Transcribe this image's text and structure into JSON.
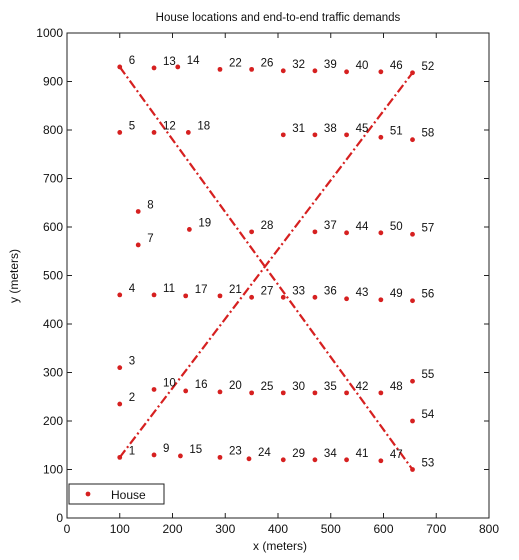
{
  "chart_data": {
    "type": "scatter",
    "title": "House locations and end-to-end traffic demands",
    "xlabel": "x (meters)",
    "ylabel": "y (meters)",
    "xlim": [
      0,
      800
    ],
    "ylim": [
      0,
      1000
    ],
    "xticks": [
      0,
      100,
      200,
      300,
      400,
      500,
      600,
      700,
      800
    ],
    "yticks": [
      0,
      100,
      200,
      300,
      400,
      500,
      600,
      700,
      800,
      900,
      1000
    ],
    "grid": false,
    "legend": {
      "position": "bottom-left",
      "entries": [
        {
          "label": "House",
          "marker": "dot",
          "color": "#d62020"
        }
      ]
    },
    "colors": {
      "house": "#d62020",
      "demand": "#d62020"
    },
    "points": [
      {
        "label": "1",
        "x": 100,
        "y": 125
      },
      {
        "label": "2",
        "x": 100,
        "y": 235
      },
      {
        "label": "3",
        "x": 100,
        "y": 310
      },
      {
        "label": "4",
        "x": 100,
        "y": 460
      },
      {
        "label": "5",
        "x": 100,
        "y": 795
      },
      {
        "label": "6",
        "x": 100,
        "y": 930
      },
      {
        "label": "7",
        "x": 135,
        "y": 563
      },
      {
        "label": "8",
        "x": 135,
        "y": 632
      },
      {
        "label": "9",
        "x": 165,
        "y": 130
      },
      {
        "label": "10",
        "x": 165,
        "y": 265
      },
      {
        "label": "11",
        "x": 165,
        "y": 460
      },
      {
        "label": "12",
        "x": 165,
        "y": 795
      },
      {
        "label": "13",
        "x": 165,
        "y": 928
      },
      {
        "label": "14",
        "x": 210,
        "y": 930
      },
      {
        "label": "15",
        "x": 215,
        "y": 128
      },
      {
        "label": "16",
        "x": 225,
        "y": 262
      },
      {
        "label": "17",
        "x": 225,
        "y": 458
      },
      {
        "label": "18",
        "x": 230,
        "y": 795
      },
      {
        "label": "19",
        "x": 232,
        "y": 595
      },
      {
        "label": "20",
        "x": 290,
        "y": 260
      },
      {
        "label": "21",
        "x": 290,
        "y": 458
      },
      {
        "label": "22",
        "x": 290,
        "y": 925
      },
      {
        "label": "23",
        "x": 290,
        "y": 125
      },
      {
        "label": "24",
        "x": 345,
        "y": 122
      },
      {
        "label": "25",
        "x": 350,
        "y": 258
      },
      {
        "label": "26",
        "x": 350,
        "y": 925
      },
      {
        "label": "27",
        "x": 350,
        "y": 455
      },
      {
        "label": "28",
        "x": 350,
        "y": 590
      },
      {
        "label": "29",
        "x": 410,
        "y": 120
      },
      {
        "label": "30",
        "x": 410,
        "y": 258
      },
      {
        "label": "31",
        "x": 410,
        "y": 790
      },
      {
        "label": "32",
        "x": 410,
        "y": 922
      },
      {
        "label": "33",
        "x": 410,
        "y": 455
      },
      {
        "label": "34",
        "x": 470,
        "y": 120
      },
      {
        "label": "35",
        "x": 470,
        "y": 258
      },
      {
        "label": "36",
        "x": 470,
        "y": 455
      },
      {
        "label": "37",
        "x": 470,
        "y": 590
      },
      {
        "label": "38",
        "x": 470,
        "y": 790
      },
      {
        "label": "39",
        "x": 470,
        "y": 922
      },
      {
        "label": "40",
        "x": 530,
        "y": 920
      },
      {
        "label": "41",
        "x": 530,
        "y": 120
      },
      {
        "label": "42",
        "x": 530,
        "y": 258
      },
      {
        "label": "43",
        "x": 530,
        "y": 452
      },
      {
        "label": "44",
        "x": 530,
        "y": 588
      },
      {
        "label": "45",
        "x": 530,
        "y": 790
      },
      {
        "label": "46",
        "x": 595,
        "y": 920
      },
      {
        "label": "47",
        "x": 595,
        "y": 118
      },
      {
        "label": "48",
        "x": 595,
        "y": 258
      },
      {
        "label": "49",
        "x": 595,
        "y": 450
      },
      {
        "label": "50",
        "x": 595,
        "y": 588
      },
      {
        "label": "51",
        "x": 595,
        "y": 785
      },
      {
        "label": "52",
        "x": 655,
        "y": 918
      },
      {
        "label": "53",
        "x": 655,
        "y": 100
      },
      {
        "label": "54",
        "x": 655,
        "y": 200
      },
      {
        "label": "55",
        "x": 655,
        "y": 282
      },
      {
        "label": "56",
        "x": 655,
        "y": 448
      },
      {
        "label": "57",
        "x": 655,
        "y": 585
      },
      {
        "label": "58",
        "x": 655,
        "y": 780
      }
    ],
    "demands": [
      {
        "from": [
          100,
          930
        ],
        "to": [
          655,
          100
        ]
      },
      {
        "from": [
          100,
          125
        ],
        "to": [
          655,
          918
        ]
      }
    ]
  }
}
